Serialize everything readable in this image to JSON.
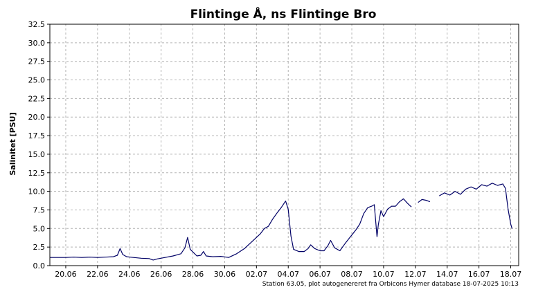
{
  "chart_data": {
    "type": "line",
    "title": "Flintinge Å, ns Flintinge Bro",
    "xlabel": "",
    "ylabel": "Salinitet [PSU]",
    "footer": "Station 63.05, plot autogenereret fra Orbicons Hymer database 18-07-2025 10:13",
    "ylim": [
      0,
      32.5
    ],
    "y_ticks": [
      "0.0",
      "2.5",
      "5.0",
      "7.5",
      "10.0",
      "12.5",
      "15.0",
      "17.5",
      "20.0",
      "22.5",
      "25.0",
      "27.5",
      "30.0",
      "32.5"
    ],
    "xlim": [
      "2025-06-19T00:00",
      "2025-07-18T12:00"
    ],
    "x_tick_labels": [
      "20.06",
      "22.06",
      "24.06",
      "26.06",
      "28.06",
      "30.06",
      "02.07",
      "04.07",
      "06.07",
      "08.07",
      "10.07",
      "12.07",
      "14.07",
      "16.07",
      "18.07"
    ],
    "grid": true,
    "line_color": "#000066",
    "series": [
      {
        "segments": [
          [
            [
              "2025-06-19T00:00",
              1.1
            ],
            [
              "2025-06-19T12:00",
              1.1
            ],
            [
              "2025-06-20T00:00",
              1.1
            ],
            [
              "2025-06-20T12:00",
              1.15
            ],
            [
              "2025-06-21T00:00",
              1.1
            ],
            [
              "2025-06-21T12:00",
              1.15
            ],
            [
              "2025-06-22T00:00",
              1.1
            ],
            [
              "2025-06-22T12:00",
              1.15
            ],
            [
              "2025-06-23T00:00",
              1.2
            ],
            [
              "2025-06-23T06:00",
              1.4
            ],
            [
              "2025-06-23T10:00",
              2.3
            ],
            [
              "2025-06-23T14:00",
              1.5
            ],
            [
              "2025-06-23T20:00",
              1.2
            ],
            [
              "2025-06-24T06:00",
              1.1
            ],
            [
              "2025-06-24T18:00",
              1.0
            ],
            [
              "2025-06-25T06:00",
              0.95
            ],
            [
              "2025-06-25T12:00",
              0.75
            ],
            [
              "2025-06-25T18:00",
              0.9
            ],
            [
              "2025-06-26T06:00",
              1.1
            ],
            [
              "2025-06-26T18:00",
              1.3
            ],
            [
              "2025-06-27T06:00",
              1.6
            ],
            [
              "2025-06-27T12:00",
              2.4
            ],
            [
              "2025-06-27T16:00",
              3.8
            ],
            [
              "2025-06-27T20:00",
              2.2
            ],
            [
              "2025-06-28T06:00",
              1.3
            ],
            [
              "2025-06-28T12:00",
              1.4
            ],
            [
              "2025-06-28T16:00",
              1.9
            ],
            [
              "2025-06-28T20:00",
              1.3
            ],
            [
              "2025-06-29T06:00",
              1.2
            ],
            [
              "2025-06-29T18:00",
              1.25
            ],
            [
              "2025-06-30T06:00",
              1.1
            ],
            [
              "2025-06-30T18:00",
              1.6
            ],
            [
              "2025-07-01T06:00",
              2.3
            ],
            [
              "2025-07-01T18:00",
              3.3
            ],
            [
              "2025-07-02T06:00",
              4.3
            ],
            [
              "2025-07-02T12:00",
              5.0
            ],
            [
              "2025-07-02T18:00",
              5.3
            ],
            [
              "2025-07-03T00:00",
              6.2
            ],
            [
              "2025-07-03T08:00",
              7.2
            ],
            [
              "2025-07-03T14:00",
              7.9
            ],
            [
              "2025-07-03T20:00",
              8.7
            ],
            [
              "2025-07-04T00:00",
              7.6
            ],
            [
              "2025-07-04T04:00",
              4.0
            ],
            [
              "2025-07-04T08:00",
              2.2
            ],
            [
              "2025-07-04T16:00",
              1.9
            ],
            [
              "2025-07-05T00:00",
              1.9
            ],
            [
              "2025-07-05T06:00",
              2.3
            ],
            [
              "2025-07-05T10:00",
              2.8
            ],
            [
              "2025-07-05T16:00",
              2.3
            ],
            [
              "2025-07-06T00:00",
              2.0
            ],
            [
              "2025-07-06T06:00",
              2.0
            ],
            [
              "2025-07-06T12:00",
              2.7
            ],
            [
              "2025-07-06T16:00",
              3.4
            ],
            [
              "2025-07-06T22:00",
              2.4
            ],
            [
              "2025-07-07T06:00",
              2.0
            ],
            [
              "2025-07-07T14:00",
              3.0
            ],
            [
              "2025-07-07T22:00",
              3.9
            ],
            [
              "2025-07-08T06:00",
              4.8
            ],
            [
              "2025-07-08T12:00",
              5.6
            ],
            [
              "2025-07-08T18:00",
              7.0
            ],
            [
              "2025-07-09T00:00",
              7.8
            ],
            [
              "2025-07-09T06:00",
              8.0
            ],
            [
              "2025-07-09T10:00",
              8.2
            ],
            [
              "2025-07-09T12:00",
              6.0
            ],
            [
              "2025-07-09T14:00",
              3.9
            ],
            [
              "2025-07-09T16:00",
              5.5
            ],
            [
              "2025-07-09T20:00",
              7.4
            ],
            [
              "2025-07-10T00:00",
              6.6
            ],
            [
              "2025-07-10T06:00",
              7.6
            ],
            [
              "2025-07-10T12:00",
              8.0
            ],
            [
              "2025-07-10T18:00",
              8.0
            ],
            [
              "2025-07-11T00:00",
              8.6
            ],
            [
              "2025-07-11T06:00",
              9.0
            ],
            [
              "2025-07-11T12:00",
              8.4
            ],
            [
              "2025-07-11T18:00",
              7.9
            ]
          ],
          [
            [
              "2025-07-12T04:00",
              8.5
            ],
            [
              "2025-07-12T10:00",
              8.9
            ],
            [
              "2025-07-12T16:00",
              8.8
            ],
            [
              "2025-07-12T22:00",
              8.6
            ]
          ],
          [
            [
              "2025-07-13T12:00",
              9.4
            ],
            [
              "2025-07-13T20:00",
              9.8
            ],
            [
              "2025-07-14T04:00",
              9.5
            ],
            [
              "2025-07-14T12:00",
              10.0
            ],
            [
              "2025-07-14T20:00",
              9.6
            ],
            [
              "2025-07-15T04:00",
              10.3
            ],
            [
              "2025-07-15T12:00",
              10.6
            ],
            [
              "2025-07-15T20:00",
              10.3
            ],
            [
              "2025-07-16T04:00",
              10.9
            ],
            [
              "2025-07-16T12:00",
              10.7
            ],
            [
              "2025-07-16T20:00",
              11.1
            ],
            [
              "2025-07-17T04:00",
              10.8
            ],
            [
              "2025-07-17T12:00",
              11.0
            ],
            [
              "2025-07-17T16:00",
              10.4
            ],
            [
              "2025-07-17T20:00",
              7.6
            ],
            [
              "2025-07-18T00:00",
              5.6
            ],
            [
              "2025-07-18T02:00",
              5.0
            ]
          ]
        ]
      }
    ]
  }
}
